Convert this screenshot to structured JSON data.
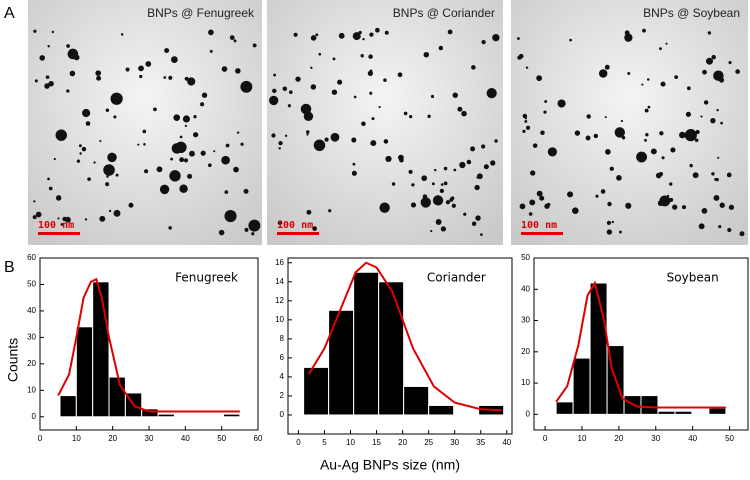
{
  "panel_labels": [
    "A",
    "B"
  ],
  "images": [
    {
      "label": "BNPs @ Fenugreek",
      "scale_bar": "100 nm"
    },
    {
      "label": "BNPs @ Coriander",
      "scale_bar": "100 nm"
    },
    {
      "label": "BNPs @ Soybean",
      "scale_bar": "100 nm"
    }
  ],
  "axis_labels": {
    "x": "Au-Ag BNPs size (nm)",
    "y": "Counts"
  },
  "chart_data": [
    {
      "type": "histogram",
      "title": "Fenugreek",
      "color": "#000000",
      "bins": [
        5.5,
        10,
        14.5,
        19,
        23.5,
        28,
        32.5,
        37,
        41.5,
        46,
        50.5,
        55
      ],
      "values": [
        8,
        34,
        51,
        15,
        9,
        3,
        1,
        0,
        0,
        0,
        1
      ],
      "fit": {
        "color": "#e00000",
        "x": [
          5,
          8,
          10,
          12,
          14,
          15.5,
          17,
          19,
          22,
          26,
          30,
          55
        ],
        "y": [
          8,
          16,
          30,
          45,
          51,
          52,
          45,
          30,
          12,
          4,
          2,
          2
        ]
      },
      "xlim": [
        0,
        60
      ],
      "xticks": [
        0,
        10,
        20,
        30,
        40,
        50,
        60
      ],
      "ylim": [
        -5,
        60
      ],
      "yticks": [
        0,
        10,
        20,
        30,
        40,
        50,
        60
      ]
    },
    {
      "type": "histogram",
      "title": "Coriander",
      "color": "#000000",
      "bins": [
        1,
        5.8,
        10.6,
        15.4,
        20.2,
        25,
        29.8,
        34.6,
        39.4
      ],
      "values": [
        5,
        11,
        15,
        14,
        3,
        1,
        0,
        1
      ],
      "fit": {
        "color": "#e00000",
        "x": [
          2,
          5,
          8,
          11,
          13,
          15,
          18,
          22,
          26,
          30,
          35,
          39
        ],
        "y": [
          4.3,
          7,
          11,
          15,
          16,
          15.5,
          13,
          7,
          3,
          1.3,
          0.6,
          0.5
        ]
      },
      "xlim": [
        -2,
        41
      ],
      "xticks": [
        0,
        5,
        10,
        15,
        20,
        25,
        30,
        35,
        40
      ],
      "ylim": [
        -2,
        16.5
      ],
      "yticks": [
        0,
        2,
        4,
        6,
        8,
        10,
        12,
        14,
        16
      ]
    },
    {
      "type": "histogram",
      "title": "Soybean",
      "color": "#000000",
      "bins": [
        3,
        7.6,
        12.2,
        16.8,
        21.4,
        26,
        30.6,
        35.2,
        39.8,
        44.4,
        49
      ],
      "values": [
        4,
        18,
        42,
        22,
        6,
        6,
        1,
        1,
        0,
        2
      ],
      "fit": {
        "color": "#e00000",
        "x": [
          3,
          6,
          9,
          11.5,
          13.5,
          16,
          18,
          21,
          25,
          30,
          49
        ],
        "y": [
          4,
          9,
          22,
          38,
          42,
          30,
          15,
          5,
          2.5,
          2.2,
          2.2
        ]
      },
      "xlim": [
        -3,
        55
      ],
      "xticks": [
        0,
        10,
        20,
        30,
        40,
        50
      ],
      "ylim": [
        -5,
        50
      ],
      "yticks": [
        0,
        10,
        20,
        30,
        40,
        50
      ]
    }
  ]
}
